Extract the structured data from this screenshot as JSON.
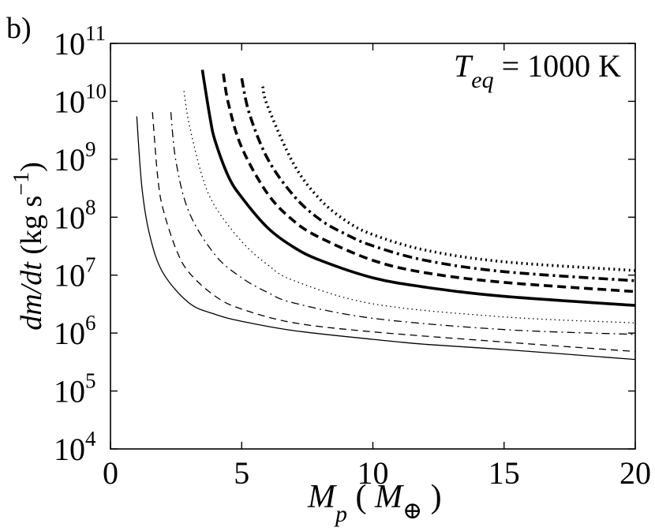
{
  "panel_label": "b)",
  "chart_data": {
    "type": "line",
    "annotation": {
      "base": "T",
      "subscript": "eq",
      "rest": " = 1000 K"
    },
    "xlabel": {
      "base": "M",
      "subscript": "p",
      "open": " ( ",
      "unit_base": "M",
      "unit_subscript": "⊕",
      "close": " )"
    },
    "ylabel": {
      "italic": "dm/dt",
      "rest": " (kg s",
      "exponent": "−1",
      "close": ")"
    },
    "xlim": [
      0,
      20
    ],
    "xticks": [
      0,
      5,
      10,
      15,
      20
    ],
    "xtick_labels": [
      "0",
      "5",
      "10",
      "15",
      "20"
    ],
    "ylim": [
      10000,
      100000000000
    ],
    "yscale": "log",
    "yticks": [
      {
        "value": 10000,
        "base": "10",
        "exp": "4"
      },
      {
        "value": 100000,
        "base": "10",
        "exp": "5"
      },
      {
        "value": 1000000,
        "base": "10",
        "exp": "6"
      },
      {
        "value": 10000000,
        "base": "10",
        "exp": "7"
      },
      {
        "value": 100000000,
        "base": "10",
        "exp": "8"
      },
      {
        "value": 1000000000,
        "base": "10",
        "exp": "9"
      },
      {
        "value": 10000000000,
        "base": "10",
        "exp": "10"
      },
      {
        "value": 100000000000,
        "base": "10",
        "exp": "11"
      }
    ],
    "grid": false,
    "series": [
      {
        "style": "thin-solid",
        "x_start": 1.0,
        "y_start": 5500000000,
        "y_end": 350000,
        "values": [
          [
            1.0,
            5500000000
          ],
          [
            1.2,
            320000000
          ],
          [
            1.5,
            48000000
          ],
          [
            2.0,
            11000000
          ],
          [
            3.0,
            3300000
          ],
          [
            4.0,
            2100000
          ],
          [
            5.0,
            1600000
          ],
          [
            7.0,
            1100000
          ],
          [
            10.0,
            780000
          ],
          [
            12.0,
            640000
          ],
          [
            15.0,
            520000
          ],
          [
            20.0,
            350000
          ]
        ]
      },
      {
        "style": "thin-dashed",
        "x_start": 1.6,
        "y_start": 6500000000,
        "y_end": 480000,
        "values": [
          [
            1.6,
            6500000000
          ],
          [
            1.8,
            500000000
          ],
          [
            2.0,
            140000000
          ],
          [
            2.5,
            28000000
          ],
          [
            3.0,
            11000000
          ],
          [
            4.0,
            4300000
          ],
          [
            5.0,
            2600000
          ],
          [
            7.0,
            1500000
          ],
          [
            10.0,
            1050000
          ],
          [
            15.0,
            700000
          ],
          [
            20.0,
            480000
          ]
        ]
      },
      {
        "style": "thin-dashdot",
        "x_start": 2.3,
        "y_start": 6500000000,
        "y_end": 950000,
        "values": [
          [
            2.3,
            6500000000
          ],
          [
            2.5,
            900000000
          ],
          [
            3.0,
            120000000
          ],
          [
            4.0,
            22000000
          ],
          [
            5.0,
            9000000
          ],
          [
            6.0,
            5000000
          ],
          [
            7.0,
            3300000
          ],
          [
            10.0,
            1800000
          ],
          [
            15.0,
            1150000
          ],
          [
            20.0,
            950000
          ]
        ]
      },
      {
        "style": "thin-dotted",
        "x_start": 2.8,
        "y_start": 15000000000,
        "y_end": 1500000,
        "values": [
          [
            2.8,
            15000000000
          ],
          [
            3.0,
            4000000000
          ],
          [
            3.5,
            500000000
          ],
          [
            4.0,
            150000000
          ],
          [
            5.0,
            38000000
          ],
          [
            6.0,
            15000000
          ],
          [
            7.0,
            8000000
          ],
          [
            10.0,
            3200000
          ],
          [
            15.0,
            1900000
          ],
          [
            20.0,
            1500000
          ]
        ]
      },
      {
        "style": "thick-solid",
        "x_start": 3.5,
        "y_start": 35000000000,
        "y_end": 3000000,
        "values": [
          [
            3.5,
            35000000000
          ],
          [
            3.8,
            5000000000
          ],
          [
            4.0,
            2000000000
          ],
          [
            4.5,
            500000000
          ],
          [
            5.0,
            220000000
          ],
          [
            6.0,
            65000000
          ],
          [
            7.0,
            30000000
          ],
          [
            8.0,
            18000000
          ],
          [
            10.0,
            9000000
          ],
          [
            12.0,
            6200000
          ],
          [
            15.0,
            4300000
          ],
          [
            20.0,
            3000000
          ]
        ]
      },
      {
        "style": "thick-dashed",
        "x_start": 4.3,
        "y_start": 30000000000,
        "y_end": 5200000,
        "values": [
          [
            4.3,
            30000000000
          ],
          [
            4.5,
            9000000000
          ],
          [
            5.0,
            1600000000
          ],
          [
            6.0,
            250000000
          ],
          [
            7.0,
            85000000
          ],
          [
            8.0,
            44000000
          ],
          [
            10.0,
            18000000
          ],
          [
            12.0,
            11000000
          ],
          [
            15.0,
            7500000
          ],
          [
            20.0,
            5200000
          ]
        ]
      },
      {
        "style": "thick-dashdot",
        "x_start": 5.0,
        "y_start": 25000000000,
        "y_end": 8000000,
        "values": [
          [
            5.0,
            25000000000
          ],
          [
            5.3,
            6000000000
          ],
          [
            6.0,
            1000000000
          ],
          [
            7.0,
            230000000
          ],
          [
            8.0,
            90000000
          ],
          [
            9.0,
            50000000
          ],
          [
            10.0,
            32000000
          ],
          [
            12.0,
            18000000
          ],
          [
            15.0,
            11500000
          ],
          [
            20.0,
            8000000
          ]
        ]
      },
      {
        "style": "thick-dotted",
        "x_start": 5.8,
        "y_start": 18000000000,
        "y_end": 12000000,
        "values": [
          [
            5.8,
            18000000000
          ],
          [
            6.0,
            8000000000
          ],
          [
            7.0,
            800000000
          ],
          [
            8.0,
            200000000
          ],
          [
            9.0,
            85000000
          ],
          [
            10.0,
            50000000
          ],
          [
            12.0,
            27000000
          ],
          [
            15.0,
            17000000
          ],
          [
            20.0,
            12000000
          ]
        ]
      }
    ],
    "line_styles": {
      "thin-solid": {
        "width": 1.3,
        "dash": ""
      },
      "thin-dashed": {
        "width": 1.3,
        "dash": "9,6"
      },
      "thin-dashdot": {
        "width": 1.3,
        "dash": "10,5,2,5"
      },
      "thin-dotted": {
        "width": 1.3,
        "dash": "1.5,4"
      },
      "thick-solid": {
        "width": 3.6,
        "dash": ""
      },
      "thick-dashed": {
        "width": 3.6,
        "dash": "11,6"
      },
      "thick-dashdot": {
        "width": 3.6,
        "dash": "12,5,3,5"
      },
      "thick-dotted": {
        "width": 3.6,
        "dash": "2,4.5"
      }
    },
    "line_color": "#000000"
  }
}
